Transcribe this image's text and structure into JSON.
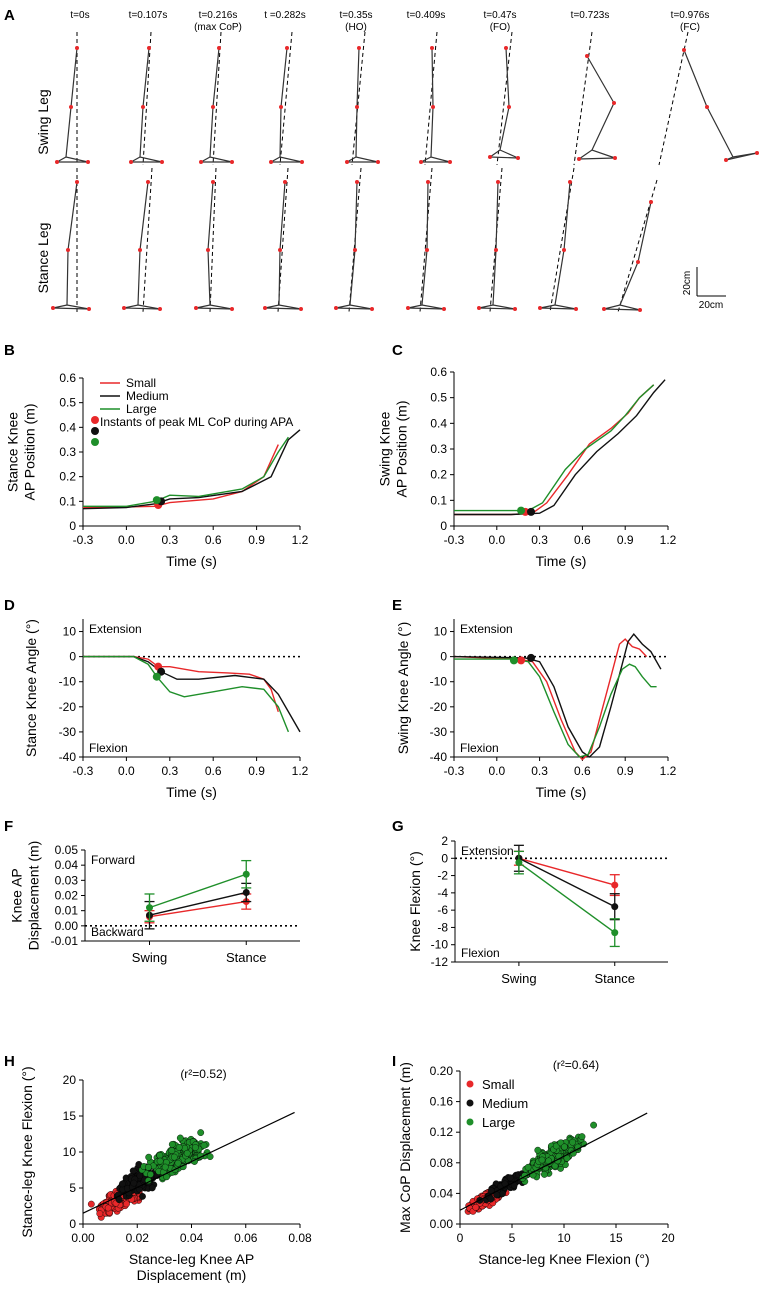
{
  "colors": {
    "small": "#e8282a",
    "medium": "#111111",
    "large": "#1f8f2a"
  },
  "panelA": {
    "letter": "A",
    "row_labels": [
      "Swing Leg",
      "Stance Leg"
    ],
    "times": [
      "t=0s",
      "t=0.107s",
      "t=0.216s\n(max CoP)",
      "t =0.282s",
      "t=0.35s\n(HO)",
      "t=0.409s",
      "t=0.47s\n(FO)",
      "t=0.723s",
      "t=0.976s\n(FC)"
    ],
    "scale_v": "20cm",
    "scale_h": "20cm"
  },
  "chart_data": [
    {
      "id": "B",
      "type": "line",
      "xlabel": "Time (s)",
      "ylabel": [
        "Stance Knee",
        "AP Position (m)"
      ],
      "xlim": [
        -0.3,
        1.2
      ],
      "ylim": [
        0,
        0.6
      ],
      "xticks": [
        "-0.3",
        "0.0",
        "0.3",
        "0.6",
        "0.9",
        "1.2"
      ],
      "yticks": [
        "0",
        "0.1",
        "0.2",
        "0.3",
        "0.4",
        "0.5",
        "0.6"
      ],
      "legend": [
        "Small",
        "Medium",
        "Large",
        "Instants of peak ML CoP during APA"
      ],
      "series": [
        {
          "name": "Small",
          "color": "small",
          "points": [
            [
              -0.3,
              0.075
            ],
            [
              0,
              0.077
            ],
            [
              0.2,
              0.08
            ],
            [
              0.3,
              0.095
            ],
            [
              0.6,
              0.11
            ],
            [
              0.8,
              0.14
            ],
            [
              0.95,
              0.2
            ],
            [
              1.05,
              0.33
            ]
          ]
        },
        {
          "name": "Medium",
          "color": "medium",
          "points": [
            [
              -0.3,
              0.07
            ],
            [
              0,
              0.075
            ],
            [
              0.2,
              0.09
            ],
            [
              0.3,
              0.11
            ],
            [
              0.5,
              0.115
            ],
            [
              0.8,
              0.14
            ],
            [
              1.0,
              0.2
            ],
            [
              1.12,
              0.35
            ],
            [
              1.2,
              0.39
            ]
          ]
        },
        {
          "name": "Large",
          "color": "large",
          "points": [
            [
              -0.3,
              0.08
            ],
            [
              0,
              0.08
            ],
            [
              0.2,
              0.1
            ],
            [
              0.3,
              0.125
            ],
            [
              0.5,
              0.12
            ],
            [
              0.8,
              0.15
            ],
            [
              0.95,
              0.2
            ],
            [
              1.05,
              0.3
            ],
            [
              1.12,
              0.36
            ]
          ]
        }
      ],
      "markers": [
        {
          "color": "small",
          "x": 0.22,
          "y": 0.085
        },
        {
          "color": "medium",
          "x": 0.24,
          "y": 0.1
        },
        {
          "color": "large",
          "x": 0.21,
          "y": 0.105
        }
      ]
    },
    {
      "id": "C",
      "type": "line",
      "xlabel": "Time (s)",
      "ylabel": [
        "Swing Knee",
        "AP Position (m)"
      ],
      "xlim": [
        -0.3,
        1.2
      ],
      "ylim": [
        0,
        0.6
      ],
      "xticks": [
        "-0.3",
        "0.0",
        "0.3",
        "0.6",
        "0.9",
        "1.2"
      ],
      "yticks": [
        "0",
        "0.1",
        "0.2",
        "0.3",
        "0.4",
        "0.5",
        "0.6"
      ],
      "series": [
        {
          "name": "Small",
          "color": "small",
          "points": [
            [
              -0.3,
              0.045
            ],
            [
              0.1,
              0.045
            ],
            [
              0.25,
              0.05
            ],
            [
              0.35,
              0.09
            ],
            [
              0.5,
              0.2
            ],
            [
              0.65,
              0.32
            ],
            [
              0.8,
              0.38
            ],
            [
              0.92,
              0.44
            ],
            [
              1.0,
              0.5
            ],
            [
              1.1,
              0.55
            ]
          ]
        },
        {
          "name": "Medium",
          "color": "medium",
          "points": [
            [
              -0.3,
              0.045
            ],
            [
              0.1,
              0.045
            ],
            [
              0.3,
              0.05
            ],
            [
              0.4,
              0.08
            ],
            [
              0.55,
              0.2
            ],
            [
              0.7,
              0.29
            ],
            [
              0.85,
              0.36
            ],
            [
              0.98,
              0.43
            ],
            [
              1.1,
              0.52
            ],
            [
              1.18,
              0.57
            ]
          ]
        },
        {
          "name": "Large",
          "color": "large",
          "points": [
            [
              -0.3,
              0.06
            ],
            [
              0.1,
              0.06
            ],
            [
              0.22,
              0.06
            ],
            [
              0.32,
              0.09
            ],
            [
              0.48,
              0.22
            ],
            [
              0.62,
              0.3
            ],
            [
              0.8,
              0.37
            ],
            [
              0.9,
              0.43
            ],
            [
              1.0,
              0.5
            ],
            [
              1.1,
              0.55
            ]
          ]
        }
      ],
      "markers": [
        {
          "color": "small",
          "x": 0.2,
          "y": 0.055
        },
        {
          "color": "medium",
          "x": 0.24,
          "y": 0.055
        },
        {
          "color": "large",
          "x": 0.17,
          "y": 0.06
        }
      ]
    },
    {
      "id": "D",
      "type": "line",
      "xlabel": "Time (s)",
      "ylabel": [
        "Stance Knee Angle (°)"
      ],
      "top_note": "Extension",
      "bottom_note": "Flexion",
      "xlim": [
        -0.3,
        1.2
      ],
      "ylim": [
        -40,
        15
      ],
      "xticks": [
        "-0.3",
        "0.0",
        "0.3",
        "0.6",
        "0.9",
        "1.2"
      ],
      "yticks": [
        "10",
        "0",
        "-10",
        "-20",
        "-30",
        "-40"
      ],
      "zero_line": 0,
      "series": [
        {
          "name": "Small",
          "color": "small",
          "points": [
            [
              -0.3,
              0
            ],
            [
              0.05,
              0
            ],
            [
              0.15,
              -1
            ],
            [
              0.22,
              -4
            ],
            [
              0.3,
              -4
            ],
            [
              0.5,
              -6
            ],
            [
              0.7,
              -6.5
            ],
            [
              0.85,
              -7
            ],
            [
              0.95,
              -9
            ],
            [
              1.0,
              -13
            ],
            [
              1.05,
              -22
            ]
          ]
        },
        {
          "name": "Medium",
          "color": "medium",
          "points": [
            [
              -0.3,
              0
            ],
            [
              0.05,
              0
            ],
            [
              0.15,
              -2
            ],
            [
              0.24,
              -6
            ],
            [
              0.35,
              -9
            ],
            [
              0.5,
              -9
            ],
            [
              0.75,
              -7.5
            ],
            [
              0.95,
              -9
            ],
            [
              1.05,
              -15
            ],
            [
              1.15,
              -25
            ],
            [
              1.2,
              -30
            ]
          ]
        },
        {
          "name": "Large",
          "color": "large",
          "points": [
            [
              -0.3,
              0
            ],
            [
              0.05,
              0
            ],
            [
              0.15,
              -3
            ],
            [
              0.21,
              -8
            ],
            [
              0.3,
              -14
            ],
            [
              0.4,
              -16
            ],
            [
              0.6,
              -14
            ],
            [
              0.8,
              -12
            ],
            [
              0.95,
              -13
            ],
            [
              1.05,
              -20
            ],
            [
              1.12,
              -30
            ]
          ]
        }
      ],
      "markers": [
        {
          "color": "small",
          "x": 0.22,
          "y": -4
        },
        {
          "color": "medium",
          "x": 0.24,
          "y": -6
        },
        {
          "color": "large",
          "x": 0.21,
          "y": -8
        }
      ]
    },
    {
      "id": "E",
      "type": "line",
      "xlabel": "Time (s)",
      "ylabel": [
        "Swing Knee Angle (°)"
      ],
      "top_note": "Extension",
      "bottom_note": "Flexion",
      "xlim": [
        -0.3,
        1.2
      ],
      "ylim": [
        -40,
        15
      ],
      "xticks": [
        "-0.3",
        "0.0",
        "0.3",
        "0.6",
        "0.9",
        "1.2"
      ],
      "yticks": [
        "10",
        "0",
        "-10",
        "-20",
        "-30",
        "-40"
      ],
      "zero_line": 0,
      "series": [
        {
          "name": "Small",
          "color": "small",
          "points": [
            [
              -0.3,
              0
            ],
            [
              0.15,
              -1
            ],
            [
              0.25,
              -2
            ],
            [
              0.35,
              -10
            ],
            [
              0.45,
              -25
            ],
            [
              0.55,
              -38
            ],
            [
              0.6,
              -41
            ],
            [
              0.66,
              -38
            ],
            [
              0.72,
              -25
            ],
            [
              0.8,
              -8
            ],
            [
              0.86,
              5
            ],
            [
              0.9,
              7
            ],
            [
              0.95,
              4
            ],
            [
              1.0,
              3
            ],
            [
              1.05,
              0
            ]
          ]
        },
        {
          "name": "Medium",
          "color": "medium",
          "points": [
            [
              -0.3,
              0
            ],
            [
              0.2,
              -0.5
            ],
            [
              0.3,
              -2
            ],
            [
              0.4,
              -12
            ],
            [
              0.5,
              -28
            ],
            [
              0.6,
              -38
            ],
            [
              0.65,
              -40
            ],
            [
              0.72,
              -36
            ],
            [
              0.8,
              -20
            ],
            [
              0.87,
              -5
            ],
            [
              0.92,
              6
            ],
            [
              0.96,
              9
            ],
            [
              1.02,
              5
            ],
            [
              1.08,
              2
            ],
            [
              1.15,
              -5
            ]
          ]
        },
        {
          "name": "Large",
          "color": "large",
          "points": [
            [
              -0.3,
              -1
            ],
            [
              0.12,
              -1
            ],
            [
              0.22,
              -2
            ],
            [
              0.3,
              -8
            ],
            [
              0.4,
              -22
            ],
            [
              0.5,
              -35
            ],
            [
              0.58,
              -40
            ],
            [
              0.64,
              -39
            ],
            [
              0.72,
              -28
            ],
            [
              0.8,
              -15
            ],
            [
              0.88,
              -5
            ],
            [
              0.93,
              -3
            ],
            [
              0.97,
              -4
            ],
            [
              1.02,
              -8
            ],
            [
              1.08,
              -12
            ],
            [
              1.12,
              -12
            ]
          ]
        }
      ],
      "markers": [
        {
          "color": "small",
          "x": 0.17,
          "y": -1.5
        },
        {
          "color": "medium",
          "x": 0.24,
          "y": -0.5
        },
        {
          "color": "large",
          "x": 0.12,
          "y": -1.5
        }
      ]
    },
    {
      "id": "F",
      "type": "line",
      "categories": [
        "Swing",
        "Stance"
      ],
      "ylabel": [
        "Knee AP",
        "Displacement (m)"
      ],
      "top_note": "Forward",
      "bottom_note": "Backward",
      "ylim": [
        -0.01,
        0.05
      ],
      "yticks": [
        "0.05",
        "0.04",
        "0.03",
        "0.02",
        "0.01",
        "0.00",
        "-0.01"
      ],
      "zero_line": 0,
      "series": [
        {
          "name": "Small",
          "color": "small",
          "values": [
            0.006,
            0.016
          ],
          "err": [
            0.004,
            0.005
          ]
        },
        {
          "name": "Medium",
          "color": "medium",
          "values": [
            0.007,
            0.022
          ],
          "err": [
            0.009,
            0.006
          ]
        },
        {
          "name": "Large",
          "color": "large",
          "values": [
            0.012,
            0.034
          ],
          "err": [
            0.009,
            0.009
          ]
        }
      ]
    },
    {
      "id": "G",
      "type": "line",
      "categories": [
        "Swing",
        "Stance"
      ],
      "ylabel": [
        "Knee Flexion (°)"
      ],
      "top_note": "Extension",
      "bottom_note": "Flexion",
      "ylim": [
        -12,
        2
      ],
      "yticks": [
        "2",
        "0",
        "-2",
        "-4",
        "-6",
        "-8",
        "-10",
        "-12"
      ],
      "zero_line": 0,
      "series": [
        {
          "name": "Small",
          "color": "small",
          "values": [
            0,
            -3.1
          ],
          "err": [
            0.8,
            1.2
          ]
        },
        {
          "name": "Medium",
          "color": "medium",
          "values": [
            0,
            -5.6
          ],
          "err": [
            1.5,
            1.5
          ]
        },
        {
          "name": "Large",
          "color": "large",
          "values": [
            -0.5,
            -8.6
          ],
          "err": [
            1.3,
            1.6
          ]
        }
      ]
    },
    {
      "id": "H",
      "type": "scatter",
      "xlabel": [
        "Stance-leg Knee AP",
        "Displacement (m)"
      ],
      "ylabel": [
        "Stance-leg Knee Flexion (°)"
      ],
      "r2": "(r²=0.52)",
      "xlim": [
        0,
        0.08
      ],
      "ylim": [
        0,
        20
      ],
      "xticks": [
        "0.00",
        "0.02",
        "0.04",
        "0.06",
        "0.08"
      ],
      "yticks": [
        "0",
        "5",
        "10",
        "15",
        "20"
      ],
      "fit": [
        [
          0,
          1.5
        ],
        [
          0.078,
          15.5
        ]
      ],
      "clusters": [
        {
          "name": "Small",
          "color": "small",
          "n": 260,
          "x": [
            0.0,
            0.035
          ],
          "center": [
            0.014,
            3.2
          ],
          "spread": [
            0.009,
            2.0
          ]
        },
        {
          "name": "Medium",
          "color": "medium",
          "n": 110,
          "x": [
            0.0,
            0.045
          ],
          "center": [
            0.02,
            6.5
          ],
          "spread": [
            0.01,
            2.5
          ]
        },
        {
          "name": "Large",
          "color": "large",
          "n": 240,
          "x": [
            0.01,
            0.08
          ],
          "center": [
            0.035,
            10.5
          ],
          "spread": [
            0.012,
            3.0
          ]
        }
      ]
    },
    {
      "id": "I",
      "type": "scatter",
      "xlabel": [
        "Stance-leg Knee Flexion (°)"
      ],
      "ylabel": [
        "Max CoP Displacement (m)"
      ],
      "r2": "(r²=0.64)",
      "legend": [
        "Small",
        "Medium",
        "Large"
      ],
      "xlim": [
        0,
        20
      ],
      "ylim": [
        0,
        0.2
      ],
      "xticks": [
        "0",
        "5",
        "10",
        "15",
        "20"
      ],
      "yticks": [
        "0.00",
        "0.04",
        "0.08",
        "0.12",
        "0.16",
        "0.20"
      ],
      "fit": [
        [
          0,
          0.018
        ],
        [
          18,
          0.145
        ]
      ],
      "clusters": [
        {
          "name": "Small",
          "color": "small",
          "n": 260,
          "x": [
            0,
            8
          ],
          "center": [
            2.5,
            0.03
          ],
          "spread": [
            1.6,
            0.012
          ]
        },
        {
          "name": "Medium",
          "color": "medium",
          "n": 110,
          "x": [
            0,
            12
          ],
          "center": [
            4.5,
            0.055
          ],
          "spread": [
            2.0,
            0.015
          ]
        },
        {
          "name": "Large",
          "color": "large",
          "n": 240,
          "x": [
            2,
            18
          ],
          "center": [
            9,
            0.09
          ],
          "spread": [
            3.0,
            0.022
          ]
        }
      ]
    }
  ]
}
